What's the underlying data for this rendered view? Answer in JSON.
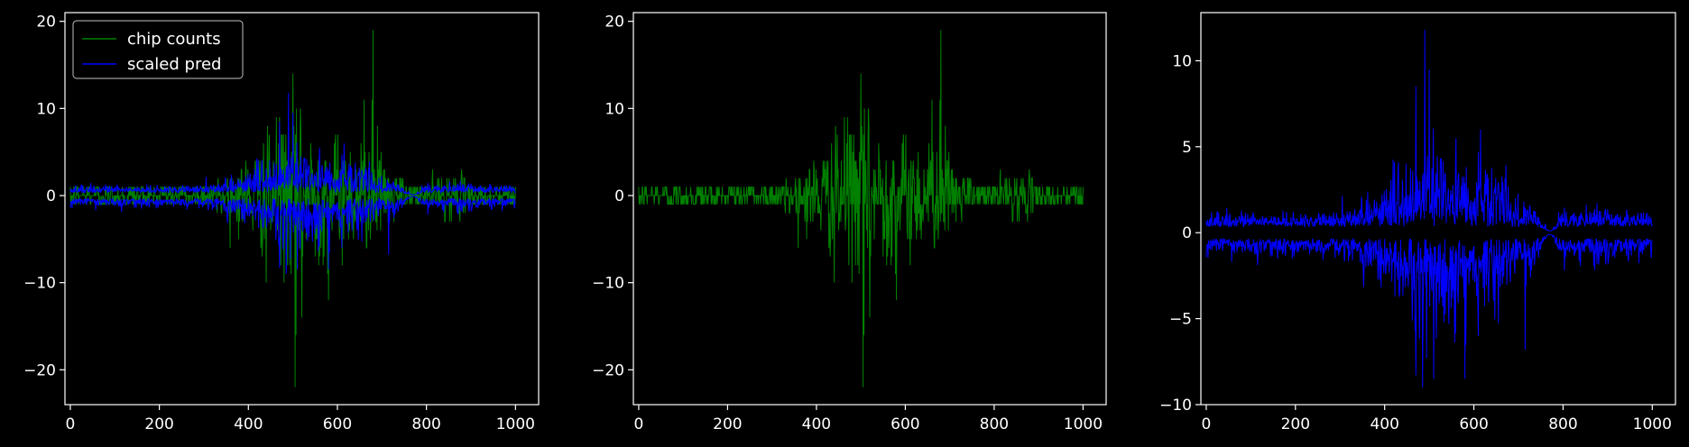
{
  "chart_data": [
    {
      "type": "line",
      "xlim": [
        -12,
        1052
      ],
      "ylim": [
        -24,
        21
      ],
      "xticks": [
        0,
        200,
        400,
        600,
        800,
        1000
      ],
      "yticks": [
        -20,
        -10,
        0,
        10,
        20
      ],
      "ytick_labels": [
        "−20",
        "−10",
        "0",
        "10",
        "20"
      ],
      "legend": {
        "location": "upper left",
        "entries": [
          "chip counts",
          "scaled pred"
        ]
      },
      "series": [
        {
          "name": "chip counts",
          "color": "#008000",
          "x_range": [
            0,
            1000
          ],
          "y_approx_min": -22,
          "y_approx_max": 19,
          "notable_peaks": [
            {
              "x": 680,
              "y": 19
            },
            {
              "x": 500,
              "y": 14
            },
            {
              "x": 505,
              "y": -22
            }
          ]
        },
        {
          "name": "scaled pred",
          "color": "#0000ff",
          "x_range": [
            0,
            1000
          ],
          "y_approx_min": -9,
          "y_approx_max": 12
        }
      ]
    },
    {
      "type": "line",
      "xlim": [
        -12,
        1052
      ],
      "ylim": [
        -24,
        21
      ],
      "xticks": [
        0,
        200,
        400,
        600,
        800,
        1000
      ],
      "yticks": [
        -20,
        -10,
        0,
        10,
        20
      ],
      "ytick_labels": [
        "−20",
        "−10",
        "0",
        "10",
        "20"
      ],
      "series": [
        {
          "color": "#008000",
          "x_range": [
            0,
            1000
          ],
          "y_approx_min": -22,
          "y_approx_max": 19,
          "notable_peaks": [
            {
              "x": 680,
              "y": 19
            },
            {
              "x": 500,
              "y": 14
            },
            {
              "x": 505,
              "y": -22
            }
          ]
        }
      ]
    },
    {
      "type": "line",
      "xlim": [
        -12,
        1052
      ],
      "ylim": [
        -10,
        12.8
      ],
      "xticks": [
        0,
        200,
        400,
        600,
        800,
        1000
      ],
      "yticks": [
        -10,
        -5,
        0,
        5,
        10
      ],
      "ytick_labels": [
        "−10",
        "−5",
        "0",
        "5",
        "10"
      ],
      "series": [
        {
          "color": "#0000ff",
          "x_range": [
            0,
            1000
          ],
          "y_approx_min": -9,
          "y_approx_max": 12,
          "notable_peaks": [
            {
              "x": 490,
              "y": 12
            },
            {
              "x": 490,
              "y": -9
            }
          ]
        }
      ]
    }
  ]
}
